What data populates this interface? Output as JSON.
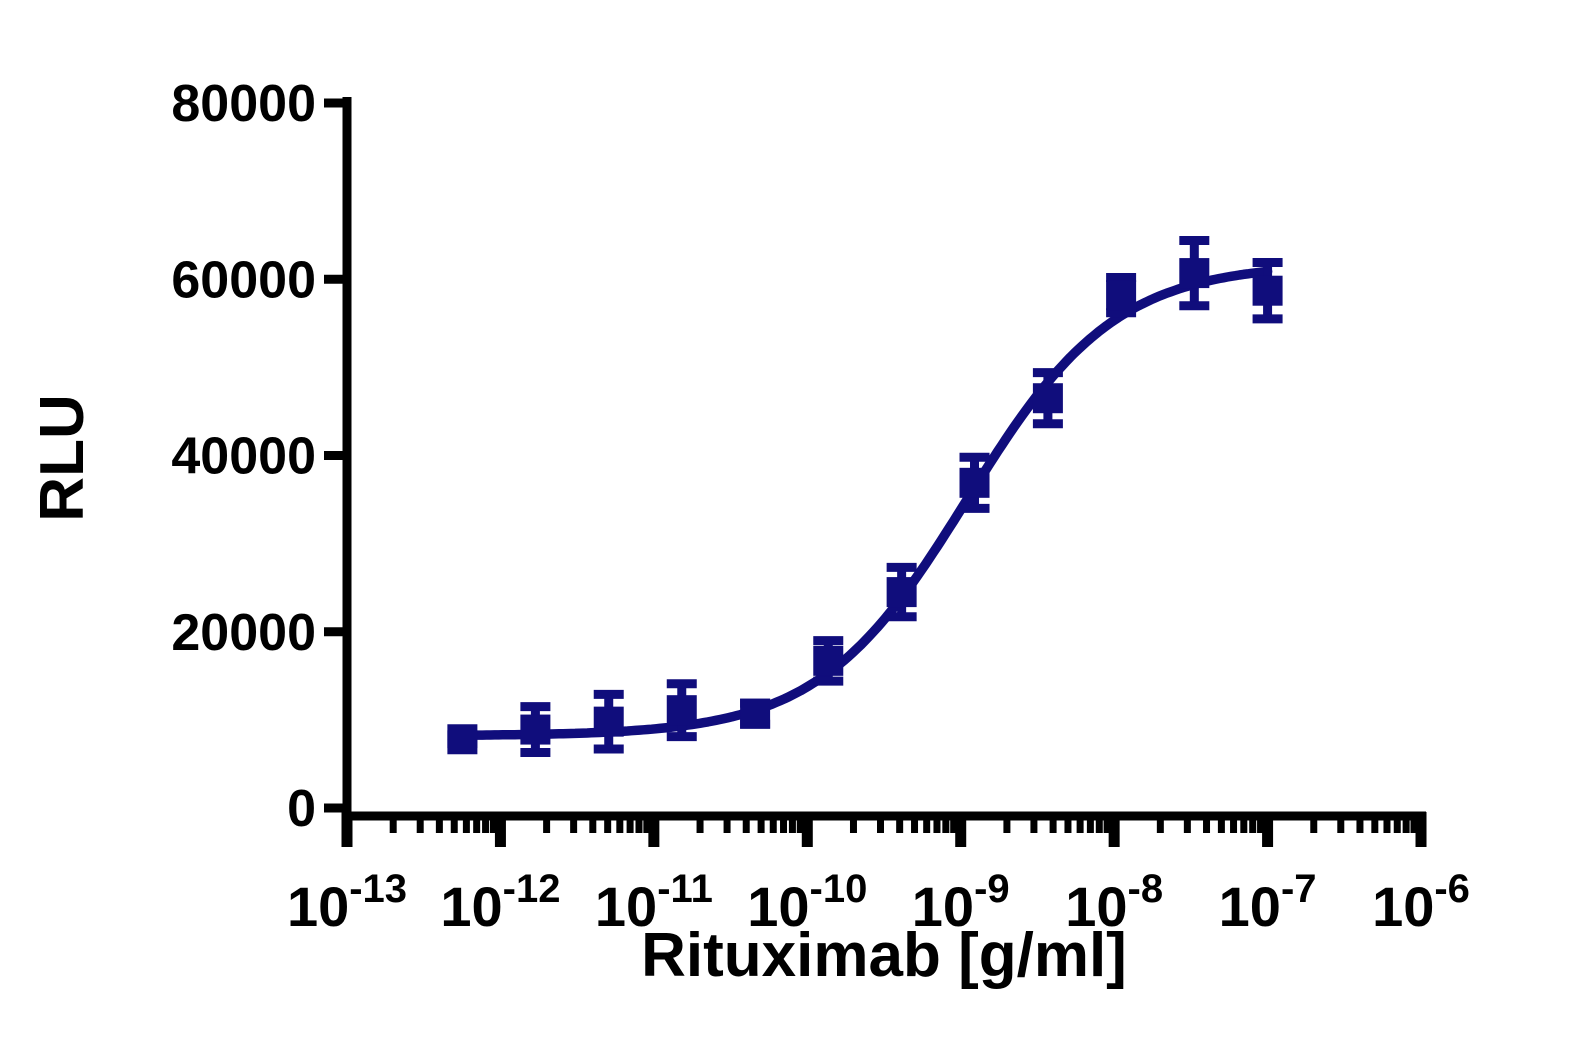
{
  "figure": {
    "title": "",
    "background_color": "#ffffff"
  },
  "colors": {
    "series": "#100d7c",
    "axis": "#000000",
    "text": "#000000"
  },
  "chart_data": {
    "type": "scatter",
    "title": "",
    "xlabel": "Rituximab [g/ml]",
    "ylabel": "RLU",
    "x_scale": "log10",
    "xlim": [
      1e-13,
      1e-06
    ],
    "ylim": [
      0,
      80000
    ],
    "grid": false,
    "legend_position": "none",
    "y_ticks": [
      0,
      20000,
      40000,
      60000,
      80000
    ],
    "x_major_tick_exponents": [
      -13,
      -12,
      -11,
      -10,
      -9,
      -8,
      -7,
      -6
    ],
    "x_tick_label_base": "10",
    "x_minor_log_ticks": true,
    "series": [
      {
        "name": "Rituximab",
        "marker": "square",
        "marker_color": "#100d7c",
        "x_g_per_ml": [
          5.65e-13,
          1.69e-12,
          5.08e-12,
          1.52e-11,
          4.57e-11,
          1.37e-10,
          4.12e-10,
          1.23e-09,
          3.7e-09,
          1.11e-08,
          3.33e-08,
          1e-07
        ],
        "y_rlu": [
          7800,
          8900,
          9800,
          11100,
          10700,
          16700,
          24500,
          36900,
          46500,
          58200,
          60700,
          58700
        ],
        "y_err_rlu": [
          500,
          2600,
          3100,
          3000,
          1200,
          2300,
          2800,
          2900,
          2900,
          2000,
          3700,
          3200
        ]
      }
    ],
    "fit_curve": {
      "model": "4PL sigmoid",
      "bottom": 8200,
      "top": 61800,
      "ec50_g_per_ml": 1.1e-09,
      "hill_slope": 0.9,
      "x_range": [
        5.65e-13,
        1e-07
      ],
      "color": "#100d7c"
    }
  }
}
